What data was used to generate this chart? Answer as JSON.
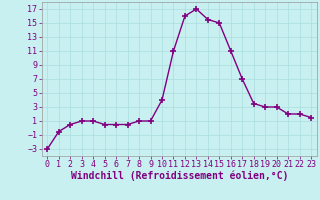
{
  "x": [
    0,
    1,
    2,
    3,
    4,
    5,
    6,
    7,
    8,
    9,
    10,
    11,
    12,
    13,
    14,
    15,
    16,
    17,
    18,
    19,
    20,
    21,
    22,
    23
  ],
  "y": [
    -3,
    -0.5,
    0.5,
    1,
    1,
    0.5,
    0.5,
    0.5,
    1,
    1,
    4,
    11,
    16,
    17,
    15.5,
    15,
    11,
    7,
    3.5,
    3,
    3,
    2,
    2,
    1.5
  ],
  "line_color": "#800080",
  "marker_color": "#800080",
  "bg_color": "#c8f0f0",
  "grid_color": "#aadddd",
  "xlabel": "Windchill (Refroidissement éolien,°C)",
  "xlim": [
    -0.5,
    23.5
  ],
  "ylim": [
    -4,
    18
  ],
  "yticks": [
    -3,
    -1,
    1,
    3,
    5,
    7,
    9,
    11,
    13,
    15,
    17
  ],
  "xticks": [
    0,
    1,
    2,
    3,
    4,
    5,
    6,
    7,
    8,
    9,
    10,
    11,
    12,
    13,
    14,
    15,
    16,
    17,
    18,
    19,
    20,
    21,
    22,
    23
  ],
  "xlabel_fontsize": 7,
  "tick_fontsize": 6,
  "marker_size": 4,
  "line_width": 1.0,
  "text_color": "#800080"
}
